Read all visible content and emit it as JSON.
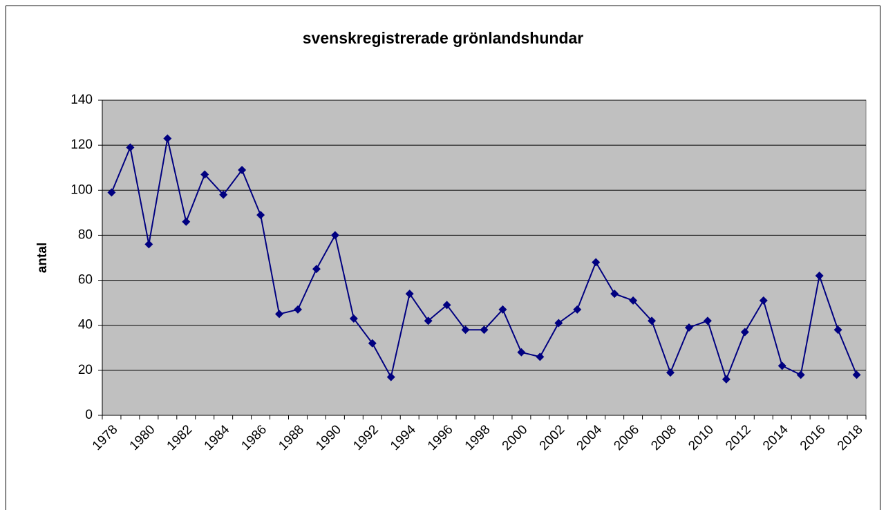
{
  "chart_data": {
    "type": "line",
    "title": "svenskregistrerade grönlandshundar",
    "y_label": "antal",
    "categories": [
      "1978",
      null,
      "1980",
      null,
      "1982",
      null,
      "1984",
      null,
      "1986",
      null,
      "1988",
      null,
      "1990",
      null,
      "1992",
      null,
      "1994",
      null,
      "1996",
      null,
      "1998",
      null,
      "2000",
      null,
      "2002",
      null,
      "2004",
      null,
      "2006",
      null,
      "2008",
      null,
      "2010",
      null,
      "2012",
      null,
      "2014",
      null,
      "2016",
      null,
      "2018"
    ],
    "series": [
      {
        "color": "#000080",
        "values": [
          99,
          119,
          76,
          123,
          86,
          107,
          98,
          109,
          89,
          45,
          47,
          65,
          80,
          43,
          32,
          17,
          54,
          42,
          49,
          38,
          38,
          47,
          28,
          26,
          41,
          47,
          68,
          54,
          51,
          42,
          19,
          39,
          42,
          16,
          37,
          51,
          22,
          18,
          62,
          38,
          18
        ]
      }
    ],
    "ylim": [
      0,
      140
    ],
    "yticks": [
      0,
      20,
      40,
      60,
      80,
      100,
      120,
      140
    ],
    "grid": true,
    "plot_background": "#c0c0c0"
  }
}
